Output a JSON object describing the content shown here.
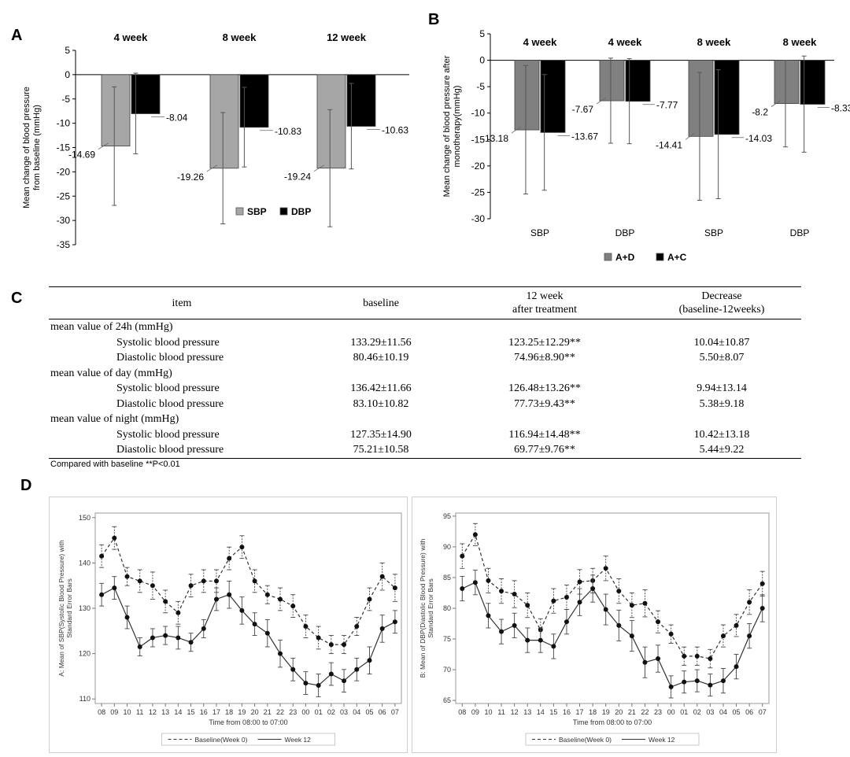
{
  "panel_labels": {
    "a": "A",
    "b": "B",
    "c": "C",
    "d": "D"
  },
  "chart_data": [
    {
      "id": "A",
      "type": "bar",
      "ylabel": "Mean change of blood pressure from baseline (mmHg)",
      "ylim": [
        -35,
        5
      ],
      "yticks": [
        "5",
        "0",
        "-5",
        "-10",
        "-15",
        "-20",
        "-25",
        "-30",
        "-35"
      ],
      "groups": [
        "4 week",
        "8 week",
        "12 week"
      ],
      "legend": [
        "SBP",
        "DBP"
      ],
      "colors": {
        "SBP": "#a6a6a6",
        "DBP": "#000000"
      },
      "series": [
        {
          "name": "SBP",
          "values": [
            -14.69,
            -19.26,
            -19.24
          ],
          "labels": [
            "-14.69",
            "-19.26",
            "-19.24"
          ],
          "err_high": [
            -2.5,
            -7.8,
            -7.2
          ],
          "err_low": [
            -26.9,
            -30.7,
            -31.3
          ]
        },
        {
          "name": "DBP",
          "values": [
            -8.04,
            -10.83,
            -10.63
          ],
          "labels": [
            "-8.04",
            "-10.83",
            "-10.63"
          ],
          "err_high": [
            0.3,
            -2.6,
            -1.8
          ],
          "err_low": [
            -16.3,
            -19.0,
            -19.4
          ]
        }
      ]
    },
    {
      "id": "B",
      "type": "bar",
      "ylabel": "Mean change of blood pressure after monotherapy(mmHg)",
      "ylim": [
        -30,
        5
      ],
      "yticks": [
        "5",
        "0",
        "-5",
        "-10",
        "-15",
        "-20",
        "-25",
        "-30"
      ],
      "groups": [
        "4 week",
        "4 week",
        "8 week",
        "8 week"
      ],
      "categories": [
        "SBP",
        "DBP",
        "SBP",
        "DBP"
      ],
      "legend": [
        "A+D",
        "A+C"
      ],
      "colors": {
        "A+D": "#808080",
        "A+C": "#000000"
      },
      "series": [
        {
          "name": "A+D",
          "values": [
            -13.18,
            -7.67,
            -14.41,
            -8.2
          ],
          "labels": [
            "-13.18",
            "-7.67",
            "-14.41",
            "-8.2"
          ],
          "err_high": [
            -1.0,
            0.4,
            -2.3,
            0.0
          ],
          "err_low": [
            -25.3,
            -15.7,
            -26.5,
            -16.4
          ]
        },
        {
          "name": "A+C",
          "values": [
            -13.67,
            -7.77,
            -14.03,
            -8.33
          ],
          "labels": [
            "-13.67",
            "-7.77",
            "-14.03",
            "-8.33"
          ],
          "err_high": [
            -2.7,
            0.3,
            -1.8,
            0.8
          ],
          "err_low": [
            -24.6,
            -15.8,
            -26.2,
            -17.4
          ]
        }
      ]
    },
    {
      "id": "C",
      "type": "table",
      "headers": {
        "item": "item",
        "baseline": "baseline",
        "after_1": "12 week",
        "after_2": "after treatment",
        "decrease_1": "Decrease",
        "decrease_2": "(baseline-12weeks)"
      },
      "groups": [
        {
          "label": "mean value of 24h (mmHg)",
          "rows": [
            {
              "item": "Systolic blood pressure",
              "baseline": "133.29±11.56",
              "after": "123.25±12.29**",
              "decrease": "10.04±10.87"
            },
            {
              "item": "Diastolic blood pressure",
              "baseline": "80.46±10.19",
              "after": "74.96±8.90**",
              "decrease": "5.50±8.07"
            }
          ]
        },
        {
          "label": "mean value of day (mmHg)",
          "rows": [
            {
              "item": "Systolic blood pressure",
              "baseline": "136.42±11.66",
              "after": "126.48±13.26**",
              "decrease": "9.94±13.14"
            },
            {
              "item": "Diastolic blood pressure",
              "baseline": "83.10±10.82",
              "after": "77.73±9.43**",
              "decrease": "5.38±9.18"
            }
          ]
        },
        {
          "label": "mean value of night (mmHg)",
          "rows": [
            {
              "item": "Systolic blood pressure",
              "baseline": "127.35±14.90",
              "after": "116.94±14.48**",
              "decrease": "10.42±13.18"
            },
            {
              "item": "Diastolic blood pressure",
              "baseline": "75.21±10.58",
              "after": "69.77±9.76**",
              "decrease": "5.44±9.22"
            }
          ]
        }
      ],
      "note": "Compared with baseline  **P<0.01"
    },
    {
      "id": "D-A",
      "type": "line",
      "ylabel": "A: Mean of SBP(Systolic Blood Pressure) with Standard Error Bars",
      "xlabel": "Time from 08:00 to 07:00",
      "x": [
        "08",
        "09",
        "10",
        "11",
        "12",
        "13",
        "14",
        "15",
        "16",
        "17",
        "18",
        "19",
        "20",
        "21",
        "22",
        "23",
        "00",
        "01",
        "02",
        "03",
        "04",
        "05",
        "06",
        "07"
      ],
      "ylim": [
        109,
        151
      ],
      "yticks": [
        110,
        120,
        130,
        140,
        150
      ],
      "series": [
        {
          "name": "Baseline(Week 0)",
          "style": "dashed",
          "values": [
            141.5,
            145.5,
            137,
            136,
            135,
            131.5,
            129,
            135,
            136,
            136,
            141,
            143.5,
            136,
            133,
            132,
            130.5,
            126,
            123.5,
            122,
            122,
            126,
            132,
            137,
            134.5
          ],
          "se": [
            2.5,
            2.5,
            2.0,
            2.5,
            3.0,
            2.5,
            2.5,
            2.5,
            2.5,
            2.5,
            2.5,
            2.5,
            2.5,
            2.0,
            2.5,
            2.5,
            2.5,
            2.5,
            2.0,
            2.0,
            2.0,
            2.5,
            3.0,
            3.0
          ]
        },
        {
          "name": "Week 12",
          "style": "solid",
          "values": [
            133,
            134.5,
            128,
            121.5,
            123.5,
            124,
            123.5,
            122.5,
            125.5,
            132,
            133,
            129.5,
            126.5,
            124.5,
            120,
            116.5,
            113.5,
            113,
            115.5,
            114,
            116.5,
            118.5,
            125.5,
            127
          ],
          "se": [
            2.5,
            2.5,
            2.5,
            2.0,
            2.0,
            2.0,
            2.5,
            2.0,
            2.0,
            2.5,
            3.0,
            3.0,
            2.5,
            3.0,
            3.0,
            2.5,
            2.5,
            2.5,
            2.5,
            2.5,
            2.5,
            3.0,
            3.0,
            2.5
          ]
        }
      ],
      "legend": [
        "Baseline(Week 0)",
        "Week 12"
      ]
    },
    {
      "id": "D-B",
      "type": "line",
      "ylabel": "B: Mean of DBP(Diastolic Blood Pressure) with Standard Error Bars",
      "xlabel": "Time from 08:00 to 07:00",
      "x": [
        "08",
        "09",
        "10",
        "11",
        "12",
        "13",
        "14",
        "15",
        "16",
        "17",
        "18",
        "19",
        "20",
        "21",
        "22",
        "23",
        "00",
        "01",
        "02",
        "03",
        "04",
        "05",
        "06",
        "07"
      ],
      "ylim": [
        64.5,
        95.5
      ],
      "yticks": [
        65,
        70,
        75,
        80,
        85,
        90,
        95
      ],
      "series": [
        {
          "name": "Baseline(Week 0)",
          "style": "dashed",
          "values": [
            88.5,
            92,
            84.5,
            82.8,
            82.3,
            80.5,
            76.5,
            81.2,
            81.8,
            84.3,
            84.5,
            86.5,
            82.8,
            80.5,
            80.8,
            77.8,
            75.8,
            72.2,
            72.2,
            71.8,
            75.5,
            77.2,
            81,
            84
          ],
          "se": [
            2.0,
            1.8,
            2.0,
            2.0,
            2.2,
            2.0,
            1.8,
            2.0,
            2.0,
            2.0,
            2.0,
            2.0,
            2.0,
            2.0,
            2.2,
            1.8,
            1.5,
            1.5,
            1.5,
            1.5,
            1.8,
            1.8,
            2.0,
            2.0
          ]
        },
        {
          "name": "Week 12",
          "style": "solid",
          "values": [
            83.2,
            84.2,
            78.8,
            76.2,
            77.2,
            74.8,
            74.8,
            73.8,
            77.8,
            81,
            83.2,
            79.8,
            77.2,
            75.5,
            71.2,
            71.8,
            67.2,
            68,
            68.2,
            67.5,
            68.2,
            70.5,
            75.5,
            80
          ],
          "se": [
            2.0,
            2.0,
            2.0,
            2.0,
            2.0,
            2.0,
            2.0,
            2.0,
            2.0,
            2.2,
            2.2,
            2.5,
            2.5,
            2.5,
            2.5,
            2.2,
            1.8,
            1.8,
            1.8,
            1.8,
            2.0,
            2.0,
            2.0,
            2.2
          ]
        }
      ],
      "legend": [
        "Baseline(Week 0)",
        "Week 12"
      ]
    }
  ]
}
